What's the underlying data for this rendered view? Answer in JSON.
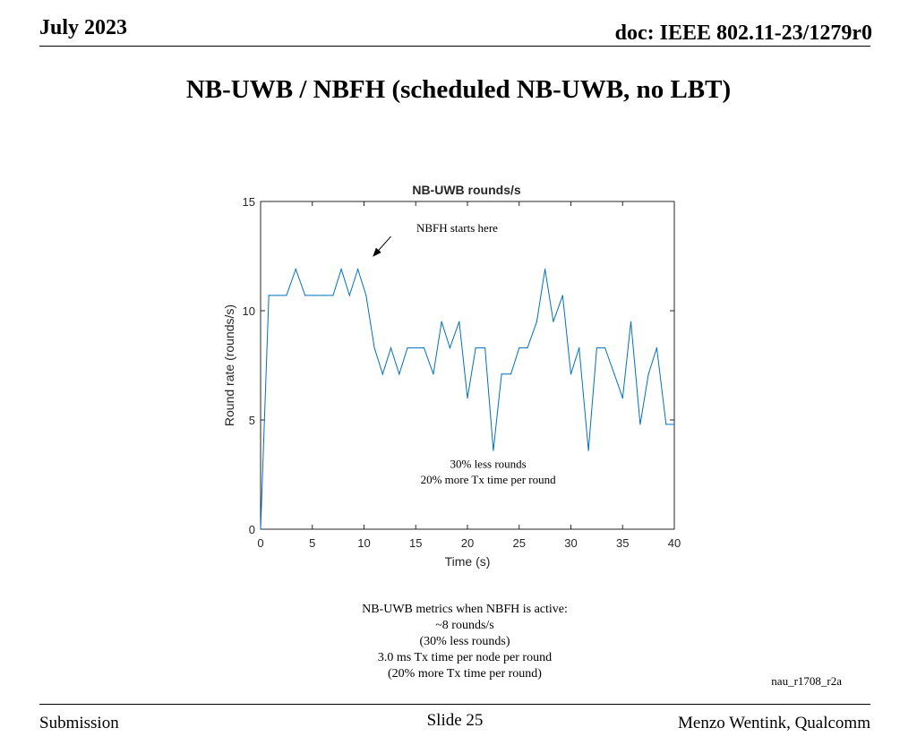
{
  "header": {
    "date": "July 2023",
    "doc_id": "doc: IEEE 802.11-23/1279r0"
  },
  "slide_title": "NB-UWB / NBFH (scheduled NB-UWB, no LBT)",
  "chart_data": {
    "type": "line",
    "title": "NB-UWB rounds/s",
    "xlabel": "Time (s)",
    "ylabel": "Round rate (rounds/s)",
    "xlim": [
      0,
      40
    ],
    "ylim": [
      0,
      15
    ],
    "xticks": [
      "0",
      "5",
      "10",
      "15",
      "20",
      "25",
      "30",
      "35",
      "40"
    ],
    "yticks": [
      "0",
      "5",
      "10",
      "15"
    ],
    "grid": false,
    "legend": "none",
    "series": [
      {
        "color": "#0072BD",
        "x": [
          0,
          0.8,
          1.6,
          2.5,
          3.4,
          4.3,
          5.2,
          6.1,
          7.0,
          7.8,
          8.6,
          9.4,
          10.2,
          11.0,
          11.8,
          12.6,
          13.4,
          14.2,
          15.0,
          15.8,
          16.7,
          17.5,
          18.3,
          19.2,
          20.0,
          20.8,
          21.7,
          22.5,
          23.3,
          24.2,
          25.0,
          25.8,
          26.7,
          27.5,
          28.3,
          29.2,
          30.0,
          30.8,
          31.7,
          32.5,
          33.3,
          34.2,
          35.0,
          35.8,
          36.7,
          37.5,
          38.3,
          39.2,
          40.0
        ],
        "y": [
          0,
          10.7,
          10.7,
          10.7,
          11.9,
          10.7,
          10.7,
          10.7,
          10.7,
          11.9,
          10.7,
          11.9,
          10.7,
          8.3,
          7.1,
          8.3,
          7.1,
          8.3,
          8.3,
          8.3,
          7.1,
          9.5,
          8.3,
          9.5,
          6.0,
          8.3,
          8.3,
          3.6,
          7.1,
          7.1,
          8.3,
          8.3,
          9.5,
          11.9,
          9.5,
          10.7,
          7.1,
          8.3,
          3.6,
          8.3,
          8.3,
          7.1,
          6.0,
          9.5,
          4.8,
          7.1,
          8.3,
          4.8,
          4.8
        ]
      }
    ],
    "annotations": [
      {
        "text": "NBFH starts here",
        "x": 19.0,
        "y": 13.6
      },
      {
        "text": "30% less rounds",
        "x": 22.0,
        "y": 2.8
      },
      {
        "text": "20% more Tx time per round",
        "x": 22.0,
        "y": 2.1
      }
    ],
    "arrow": {
      "from": [
        12.6,
        13.4
      ],
      "to": [
        10.9,
        12.5
      ]
    }
  },
  "notes": [
    "NB-UWB metrics when NBFH is active:",
    "~8 rounds/s",
    "(30% less rounds)",
    "3.0 ms Tx time per node per round",
    "(20% more Tx time per round)"
  ],
  "tag": "nau_r1708_r2a",
  "footer": {
    "left": "Submission",
    "center": "Slide 25",
    "right": "Menzo Wentink, Qualcomm"
  }
}
